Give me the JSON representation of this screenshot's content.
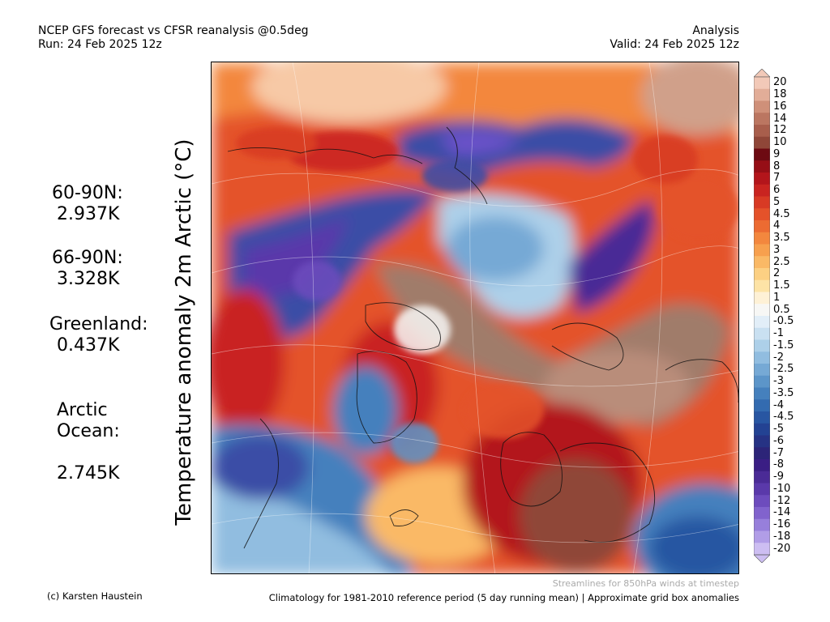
{
  "header": {
    "title": "NCEP GFS forecast vs CFSR reanalysis @0.5deg",
    "run": "Run: 24 Feb 2025 12z",
    "analysis": "Analysis",
    "valid": "Valid: 24 Feb 2025 12z"
  },
  "map": {
    "variable_label": "Temperature anomaly 2m Arctic (°C)",
    "stream_note": "Streamlines for 850hPa winds at timestep",
    "background_colors": {
      "warm_dark": "#a50f15",
      "warm": "#d7301f",
      "warm_light": "#f4a582",
      "brown": "#a07b6a",
      "neutral": "#f6e6d6",
      "cool_light": "#c6dbef",
      "cool": "#4a7fbf",
      "cold": "#3a4da6",
      "cold_purple": "#6a51c9"
    }
  },
  "stats": [
    {
      "region": "60-90N:",
      "value": "2.937K"
    },
    {
      "region": "66-90N:",
      "value": "3.328K"
    },
    {
      "region": "Greenland:",
      "value": "0.437K"
    },
    {
      "region": "Arctic\nOcean:",
      "value": "2.745K"
    }
  ],
  "colorbar": {
    "labels": [
      "20",
      "18",
      "16",
      "14",
      "12",
      "10",
      "9",
      "8",
      "7",
      "6",
      "5",
      "4.5",
      "4",
      "3.5",
      "3",
      "2.5",
      "2",
      "1.5",
      "1",
      "0.5",
      "-0.5",
      "-1",
      "-1.5",
      "-2",
      "-2.5",
      "-3",
      "-3.5",
      "-4",
      "-4.5",
      "-5",
      "-6",
      "-7",
      "-8",
      "-9",
      "-10",
      "-12",
      "-14",
      "-16",
      "-18",
      "-20"
    ],
    "colors": [
      "#f2c9b8",
      "#e2ad98",
      "#cf9079",
      "#bb7661",
      "#a85e4c",
      "#8f4638",
      "#6d0a12",
      "#960e16",
      "#b3151b",
      "#c92420",
      "#d83a24",
      "#e4522a",
      "#ec6b32",
      "#f3873e",
      "#f7a04e",
      "#fab966",
      "#fcd083",
      "#fde3a6",
      "#fef1d6",
      "#f7f7f5",
      "#e2eef8",
      "#c9e0f1",
      "#add0e9",
      "#91bde0",
      "#76a9d5",
      "#5c95c9",
      "#4580bd",
      "#336bb0",
      "#2856a2",
      "#234293",
      "#263284",
      "#2c2478",
      "#3a1e84",
      "#4a2b96",
      "#5a39aa",
      "#6d4cbd",
      "#8163cd",
      "#977fdb",
      "#b19de7",
      "#cdbef2"
    ]
  },
  "footer": {
    "credit": "(c) Karsten Haustein",
    "climatology": "Climatology for 1981-2010 reference period (5 day running mean) | Approximate grid box anomalies"
  }
}
